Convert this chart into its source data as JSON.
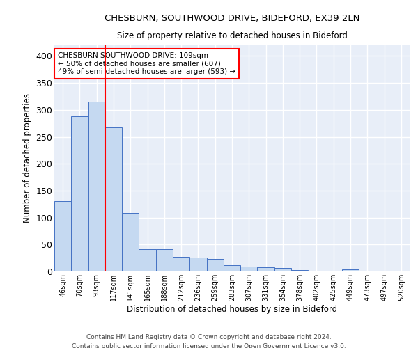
{
  "title1": "CHESBURN, SOUTHWOOD DRIVE, BIDEFORD, EX39 2LN",
  "title2": "Size of property relative to detached houses in Bideford",
  "xlabel": "Distribution of detached houses by size in Bideford",
  "ylabel": "Number of detached properties",
  "bin_labels": [
    "46sqm",
    "70sqm",
    "93sqm",
    "117sqm",
    "141sqm",
    "165sqm",
    "188sqm",
    "212sqm",
    "236sqm",
    "259sqm",
    "283sqm",
    "307sqm",
    "331sqm",
    "354sqm",
    "378sqm",
    "402sqm",
    "425sqm",
    "449sqm",
    "473sqm",
    "497sqm",
    "520sqm"
  ],
  "bar_heights": [
    130,
    288,
    315,
    268,
    108,
    42,
    41,
    27,
    26,
    23,
    11,
    9,
    8,
    6,
    3,
    0,
    0,
    4,
    0,
    0,
    0
  ],
  "bar_color": "#c5d9f1",
  "bar_edge_color": "#4472c4",
  "background_color": "#e8eef8",
  "grid_color": "#ffffff",
  "fig_background": "#ffffff",
  "ylim": [
    0,
    420
  ],
  "yticks": [
    0,
    50,
    100,
    150,
    200,
    250,
    300,
    350,
    400
  ],
  "red_line_index": 3,
  "annotation_title": "CHESBURN SOUTHWOOD DRIVE: 109sqm",
  "annotation_line1": "← 50% of detached houses are smaller (607)",
  "annotation_line2": "49% of semi-detached houses are larger (593) →",
  "footer1": "Contains HM Land Registry data © Crown copyright and database right 2024.",
  "footer2": "Contains public sector information licensed under the Open Government Licence v3.0."
}
